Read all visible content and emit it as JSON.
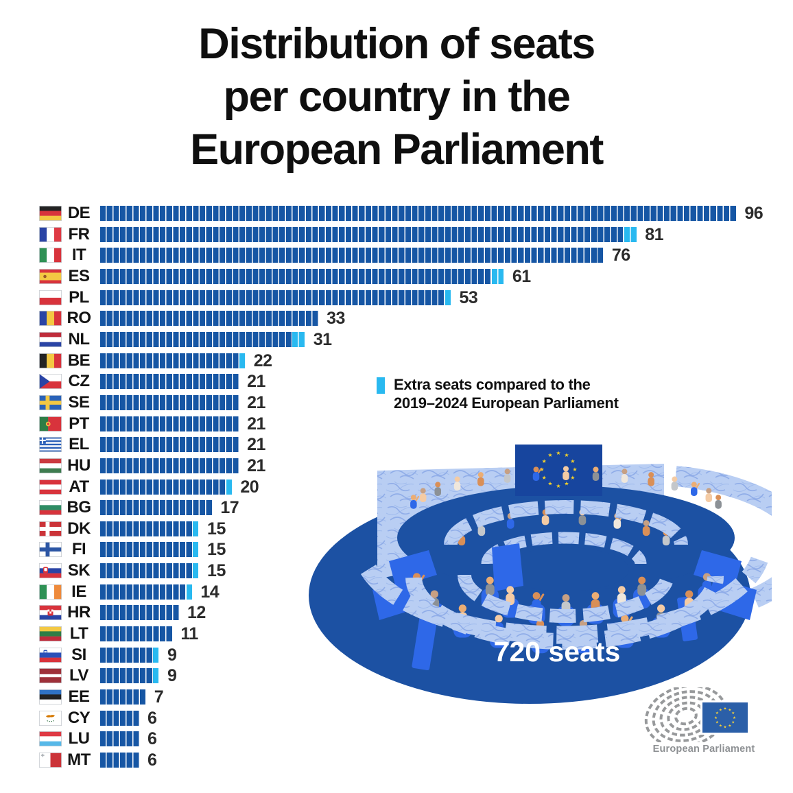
{
  "title": "Distribution of seats\nper country in the\nEuropean Parliament",
  "legend": {
    "swatch_color": "#29B9F0",
    "text": "Extra seats compared to the\n2019–2024 European Parliament"
  },
  "hemicycle": {
    "total_label": "720 seats"
  },
  "logo": {
    "label": "European Parliament"
  },
  "colors": {
    "bar": "#1656A4",
    "extra": "#29B9F0",
    "value_text": "#2B2B2B",
    "illustration_dark": "#1C51A3",
    "illustration_marble": "#B9CEF3",
    "illustration_chair": "#2E68E8",
    "eu_flag_blue": "#17459E",
    "eu_star_yellow": "#F5D22A"
  },
  "chart_data": {
    "type": "bar",
    "orientation": "horizontal",
    "unit": "seats",
    "total_seats": 720,
    "total_seats_label": "720 seats",
    "legend_label": "Extra seats compared to the 2019–2024 European Parliament",
    "countries": [
      {
        "code": "DE",
        "seats": 96,
        "extra_seats": 0,
        "flag": {
          "type": "h",
          "stripes": [
            [
              "#232323",
              1
            ],
            [
              "#D8333C",
              1
            ],
            [
              "#F3C843",
              1
            ]
          ]
        }
      },
      {
        "code": "FR",
        "seats": 81,
        "extra_seats": 2,
        "flag": {
          "type": "v",
          "stripes": [
            [
              "#2A44A5",
              1
            ],
            [
              "#FFFFFF",
              1
            ],
            [
              "#DF3A44",
              1
            ]
          ]
        }
      },
      {
        "code": "IT",
        "seats": 76,
        "extra_seats": 0,
        "flag": {
          "type": "v",
          "stripes": [
            [
              "#2F9155",
              1
            ],
            [
              "#FFFFFF",
              1
            ],
            [
              "#D8333C",
              1
            ]
          ]
        }
      },
      {
        "code": "ES",
        "seats": 61,
        "extra_seats": 2,
        "flag": {
          "type": "h",
          "stripes": [
            [
              "#D8333C",
              1
            ],
            [
              "#F3C843",
              2
            ],
            [
              "#D8333C",
              1
            ]
          ],
          "emblem": [
            {
              "t": "c",
              "x": 8.5,
              "y": 11,
              "r": 2.3,
              "f": "#9A5A28"
            }
          ]
        }
      },
      {
        "code": "PL",
        "seats": 53,
        "extra_seats": 1,
        "flag": {
          "type": "h",
          "stripes": [
            [
              "#FFFFFF",
              1
            ],
            [
              "#D8333C",
              1
            ]
          ]
        }
      },
      {
        "code": "RO",
        "seats": 33,
        "extra_seats": 0,
        "flag": {
          "type": "v",
          "stripes": [
            [
              "#2A44A5",
              1
            ],
            [
              "#F3C843",
              1
            ],
            [
              "#D8333C",
              1
            ]
          ]
        }
      },
      {
        "code": "NL",
        "seats": 31,
        "extra_seats": 2,
        "flag": {
          "type": "h",
          "stripes": [
            [
              "#BF2C3B",
              1
            ],
            [
              "#FFFFFF",
              1
            ],
            [
              "#2A44A5",
              1
            ]
          ]
        }
      },
      {
        "code": "BE",
        "seats": 22,
        "extra_seats": 1,
        "flag": {
          "type": "v",
          "stripes": [
            [
              "#232323",
              1
            ],
            [
              "#F3C843",
              1
            ],
            [
              "#D8333C",
              1
            ]
          ]
        }
      },
      {
        "code": "CZ",
        "seats": 21,
        "extra_seats": 0,
        "flag": {
          "type": "cz",
          "red": "#D8333C",
          "blue": "#2A44A5"
        }
      },
      {
        "code": "SE",
        "seats": 21,
        "extra_seats": 0,
        "flag": {
          "type": "nordic",
          "bg": "#2A62B8",
          "cross": "#F3C843"
        }
      },
      {
        "code": "PT",
        "seats": 21,
        "extra_seats": 0,
        "flag": {
          "type": "v",
          "stripes": [
            [
              "#2E7D46",
              2
            ],
            [
              "#D8333C",
              3
            ]
          ],
          "emblem": [
            {
              "t": "c",
              "x": 13.2,
              "y": 11,
              "r": 3.4,
              "f": "#F3C843"
            },
            {
              "t": "c",
              "x": 13.2,
              "y": 11,
              "r": 1.7,
              "f": "#D8333C"
            }
          ]
        }
      },
      {
        "code": "EL",
        "seats": 21,
        "extra_seats": 0,
        "flag": {
          "type": "el",
          "blue": "#2A5FB8",
          "white": "#FFFFFF"
        }
      },
      {
        "code": "HU",
        "seats": 21,
        "extra_seats": 0,
        "flag": {
          "type": "h",
          "stripes": [
            [
              "#CB3A40",
              1
            ],
            [
              "#FFFFFF",
              1
            ],
            [
              "#3E7C4F",
              1
            ]
          ]
        }
      },
      {
        "code": "AT",
        "seats": 20,
        "extra_seats": 1,
        "flag": {
          "type": "h",
          "stripes": [
            [
              "#D8333C",
              1
            ],
            [
              "#FFFFFF",
              1
            ],
            [
              "#D8333C",
              1
            ]
          ]
        }
      },
      {
        "code": "BG",
        "seats": 17,
        "extra_seats": 0,
        "flag": {
          "type": "h",
          "stripes": [
            [
              "#FFFFFF",
              1
            ],
            [
              "#2E8C64",
              1
            ],
            [
              "#D8333C",
              1
            ]
          ]
        }
      },
      {
        "code": "DK",
        "seats": 15,
        "extra_seats": 1,
        "flag": {
          "type": "nordic",
          "bg": "#CB3338",
          "cross": "#FFFFFF"
        }
      },
      {
        "code": "FI",
        "seats": 15,
        "extra_seats": 1,
        "flag": {
          "type": "nordic",
          "bg": "#FFFFFF",
          "cross": "#2C56A4"
        }
      },
      {
        "code": "SK",
        "seats": 15,
        "extra_seats": 1,
        "flag": {
          "type": "h",
          "stripes": [
            [
              "#FFFFFF",
              1
            ],
            [
              "#2A44A5",
              1
            ],
            [
              "#D8333C",
              1
            ]
          ],
          "emblem": [
            {
              "t": "r",
              "x": 6,
              "y": 5.5,
              "w": 7,
              "h": 9,
              "rx": 2,
              "f": "#D8333C"
            },
            {
              "t": "r",
              "x": 7.4,
              "y": 7,
              "w": 4.2,
              "h": 4.5,
              "rx": 1,
              "f": "#FFFFFF"
            }
          ]
        }
      },
      {
        "code": "IE",
        "seats": 14,
        "extra_seats": 1,
        "flag": {
          "type": "v",
          "stripes": [
            [
              "#2E9155",
              1
            ],
            [
              "#FFFFFF",
              1
            ],
            [
              "#EE8A3C",
              1
            ]
          ]
        }
      },
      {
        "code": "HR",
        "seats": 12,
        "extra_seats": 0,
        "flag": {
          "type": "h",
          "stripes": [
            [
              "#D8333C",
              1
            ],
            [
              "#FFFFFF",
              1
            ],
            [
              "#2A44A5",
              1
            ]
          ],
          "emblem": [
            {
              "t": "r",
              "x": 12.5,
              "y": 6.5,
              "w": 8,
              "h": 9,
              "rx": 1.5,
              "f": "#D8333C"
            },
            {
              "t": "r",
              "x": 12.5,
              "y": 6.5,
              "w": 2.7,
              "h": 3,
              "f": "#FFFFFF"
            },
            {
              "t": "r",
              "x": 17.8,
              "y": 6.5,
              "w": 2.7,
              "h": 3,
              "f": "#FFFFFF"
            },
            {
              "t": "r",
              "x": 15.2,
              "y": 9.5,
              "w": 2.7,
              "h": 3,
              "f": "#FFFFFF"
            }
          ]
        }
      },
      {
        "code": "LT",
        "seats": 11,
        "extra_seats": 0,
        "flag": {
          "type": "h",
          "stripes": [
            [
              "#F3C843",
              1
            ],
            [
              "#2E7D46",
              1
            ],
            [
              "#BF2C3B",
              1
            ]
          ]
        }
      },
      {
        "code": "SI",
        "seats": 9,
        "extra_seats": 1,
        "flag": {
          "type": "h",
          "stripes": [
            [
              "#FFFFFF",
              1
            ],
            [
              "#2A50B8",
              1
            ],
            [
              "#D8333C",
              1
            ]
          ],
          "emblem": [
            {
              "t": "r",
              "x": 6.5,
              "y": 3.5,
              "w": 5.5,
              "h": 6.5,
              "rx": 1.5,
              "f": "#2A50B8"
            },
            {
              "t": "r",
              "x": 7.5,
              "y": 5.2,
              "w": 3.5,
              "h": 2,
              "f": "#FFFFFF"
            }
          ]
        }
      },
      {
        "code": "LV",
        "seats": 9,
        "extra_seats": 1,
        "flag": {
          "type": "h",
          "stripes": [
            [
              "#9E3039",
              2
            ],
            [
              "#FFFFFF",
              1
            ],
            [
              "#9E3039",
              2
            ]
          ]
        }
      },
      {
        "code": "EE",
        "seats": 7,
        "extra_seats": 0,
        "flag": {
          "type": "h",
          "stripes": [
            [
              "#2F72C4",
              1
            ],
            [
              "#232323",
              1
            ],
            [
              "#FFFFFF",
              1
            ]
          ]
        }
      },
      {
        "code": "CY",
        "seats": 6,
        "extra_seats": 0,
        "flag": {
          "type": "cy",
          "bg": "#FFFFFF",
          "island": "#D57800",
          "branch": "#3E7C4F"
        }
      },
      {
        "code": "LU",
        "seats": 6,
        "extra_seats": 0,
        "flag": {
          "type": "h",
          "stripes": [
            [
              "#DF3A44",
              1
            ],
            [
              "#FFFFFF",
              1
            ],
            [
              "#57B8E8",
              1
            ]
          ]
        }
      },
      {
        "code": "MT",
        "seats": 6,
        "extra_seats": 0,
        "flag": {
          "type": "mt",
          "white": "#FFFFFF",
          "red": "#CB3338",
          "cross": "#A9AFB4"
        }
      }
    ]
  }
}
